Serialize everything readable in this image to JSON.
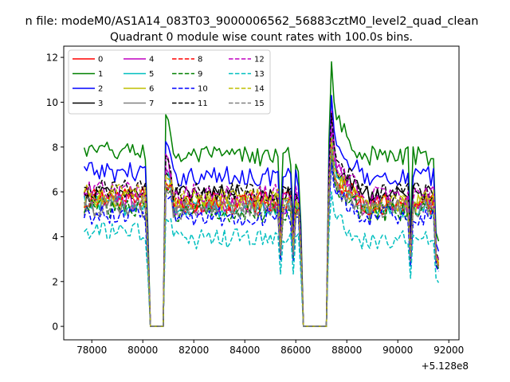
{
  "chart_data": {
    "type": "line",
    "suptitle": "n file: modeM0/AS1A14_083T03_9000006562_56883cztM0_level2_quad_clean",
    "title": "Quadrant 0 module wise count rates with 100.0s bins.",
    "xlabel": "",
    "ylabel": "",
    "x_offset_label": "+5.128e8",
    "xlim": [
      76900,
      92400
    ],
    "ylim": [
      -0.6,
      12.5
    ],
    "x_ticks": [
      78000,
      80000,
      82000,
      84000,
      86000,
      88000,
      90000,
      92000
    ],
    "x_tick_labels": [
      "78000",
      "80000",
      "82000",
      "84000",
      "86000",
      "88000",
      "90000",
      "92000"
    ],
    "y_ticks": [
      0,
      2,
      4,
      6,
      8,
      10,
      12
    ],
    "y_tick_labels": [
      "0",
      "2",
      "4",
      "6",
      "8",
      "10",
      "12"
    ],
    "grid": false,
    "legend": {
      "placement": "top-left",
      "columns": 4
    },
    "x_start": 77700,
    "x_step": 100,
    "x_end": 91600,
    "gaps": [
      [
        80300,
        80800
      ],
      [
        86300,
        87200
      ]
    ],
    "series": [
      {
        "name": "0",
        "color": "#ff0000",
        "dash": "solid",
        "base": 5.6,
        "peak": 7.8,
        "early": 5.8
      },
      {
        "name": "1",
        "color": "#008000",
        "dash": "solid",
        "base": 7.6,
        "peak": 11.8,
        "early": 7.8
      },
      {
        "name": "2",
        "color": "#0000ff",
        "dash": "solid",
        "base": 6.7,
        "peak": 10.3,
        "early": 6.9
      },
      {
        "name": "3",
        "color": "#000000",
        "dash": "solid",
        "base": 5.9,
        "peak": 8.6,
        "early": 5.9
      },
      {
        "name": "4",
        "color": "#bf00bf",
        "dash": "solid",
        "base": 5.4,
        "peak": 9.6,
        "early": 5.6
      },
      {
        "name": "5",
        "color": "#00bfbf",
        "dash": "solid",
        "base": 5.3,
        "peak": 8.8,
        "early": 5.4
      },
      {
        "name": "6",
        "color": "#bfbf00",
        "dash": "solid",
        "base": 5.5,
        "peak": 8.0,
        "early": 5.7
      },
      {
        "name": "7",
        "color": "#808080",
        "dash": "solid",
        "base": 5.2,
        "peak": 7.6,
        "early": 5.3
      },
      {
        "name": "8",
        "color": "#ff0000",
        "dash": "dashed",
        "base": 5.4,
        "peak": 8.0,
        "early": 5.6
      },
      {
        "name": "9",
        "color": "#008000",
        "dash": "dashed",
        "base": 5.1,
        "peak": 7.7,
        "early": 5.3
      },
      {
        "name": "10",
        "color": "#0000ff",
        "dash": "dashed",
        "base": 4.9,
        "peak": 7.3,
        "early": 5.0
      },
      {
        "name": "11",
        "color": "#000000",
        "dash": "dashed",
        "base": 6.0,
        "peak": 9.5,
        "early": 6.1
      },
      {
        "name": "12",
        "color": "#bf00bf",
        "dash": "dashed",
        "base": 5.9,
        "peak": 8.8,
        "early": 6.0
      },
      {
        "name": "13",
        "color": "#00bfbf",
        "dash": "dashed",
        "base": 3.9,
        "peak": 6.0,
        "early": 4.2
      },
      {
        "name": "14",
        "color": "#bfbf00",
        "dash": "dashed",
        "base": 5.7,
        "peak": 8.4,
        "early": 5.9
      },
      {
        "name": "15",
        "color": "#808080",
        "dash": "dashed",
        "base": 5.3,
        "peak": 7.9,
        "early": 5.4
      }
    ]
  }
}
